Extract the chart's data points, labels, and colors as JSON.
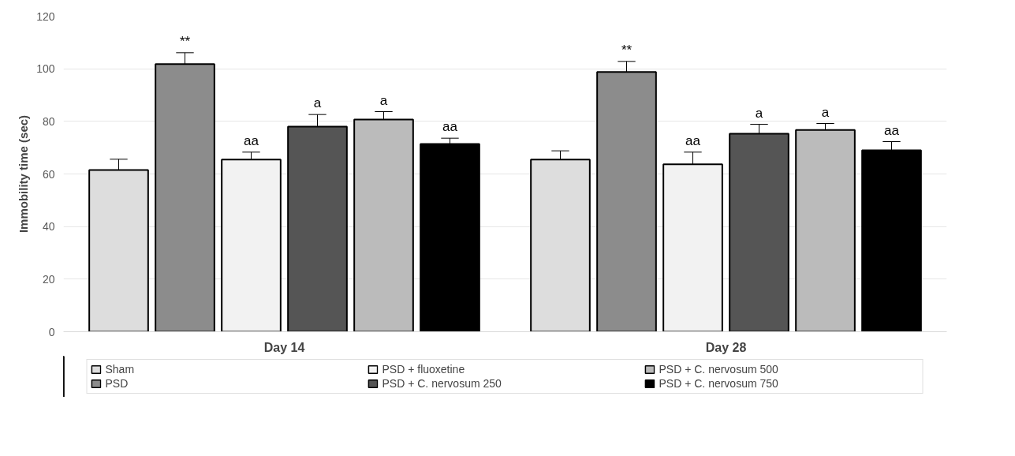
{
  "chart_data": {
    "type": "bar",
    "ylabel": "Immobility time (sec)",
    "categories": [
      "Day 14",
      "Day 28"
    ],
    "series": [
      {
        "name": "Sham",
        "color": "#dddddd",
        "values": [
          61.5,
          65.5
        ],
        "errors": [
          [
            61.5,
            65.6
          ],
          [
            65.5,
            68.8
          ]
        ],
        "value_labels": [
          null,
          null
        ]
      },
      {
        "name": "PSD",
        "color": "#8c8c8c",
        "values": [
          101.8,
          98.8
        ],
        "errors": [
          [
            101.8,
            106.1
          ],
          [
            98.8,
            102.8
          ]
        ],
        "value_labels": [
          "**",
          "**"
        ]
      },
      {
        "name": "PSD + fluoxetine",
        "color": "#f2f2f2",
        "values": [
          65.5,
          63.7
        ],
        "errors": [
          [
            65.5,
            68.3
          ],
          [
            63.7,
            68.3
          ]
        ],
        "value_labels": [
          "aa",
          "aa"
        ]
      },
      {
        "name": "PSD + C. nervosum 250",
        "color": "#555555",
        "values": [
          78.0,
          75.3
        ],
        "errors": [
          [
            78.0,
            82.6
          ],
          [
            75.3,
            78.9
          ]
        ],
        "value_labels": [
          "a",
          "a"
        ]
      },
      {
        "name": "PSD + C. nervosum 500",
        "color": "#bbbbbb",
        "values": [
          80.7,
          76.7
        ],
        "errors": [
          [
            80.7,
            83.7
          ],
          [
            76.7,
            79.2
          ]
        ],
        "value_labels": [
          "a",
          "a"
        ]
      },
      {
        "name": "PSD + C. nervosum 750",
        "color": "#000000",
        "values": [
          71.4,
          69.0
        ],
        "errors": [
          [
            71.4,
            73.6
          ],
          [
            69.0,
            72.3
          ]
        ],
        "value_labels": [
          "aa",
          "aa"
        ]
      }
    ],
    "ylim": [
      0,
      120
    ],
    "yticks": [
      0,
      20,
      40,
      60,
      80,
      100,
      120
    ],
    "grid": "y",
    "legend": "bottom"
  }
}
